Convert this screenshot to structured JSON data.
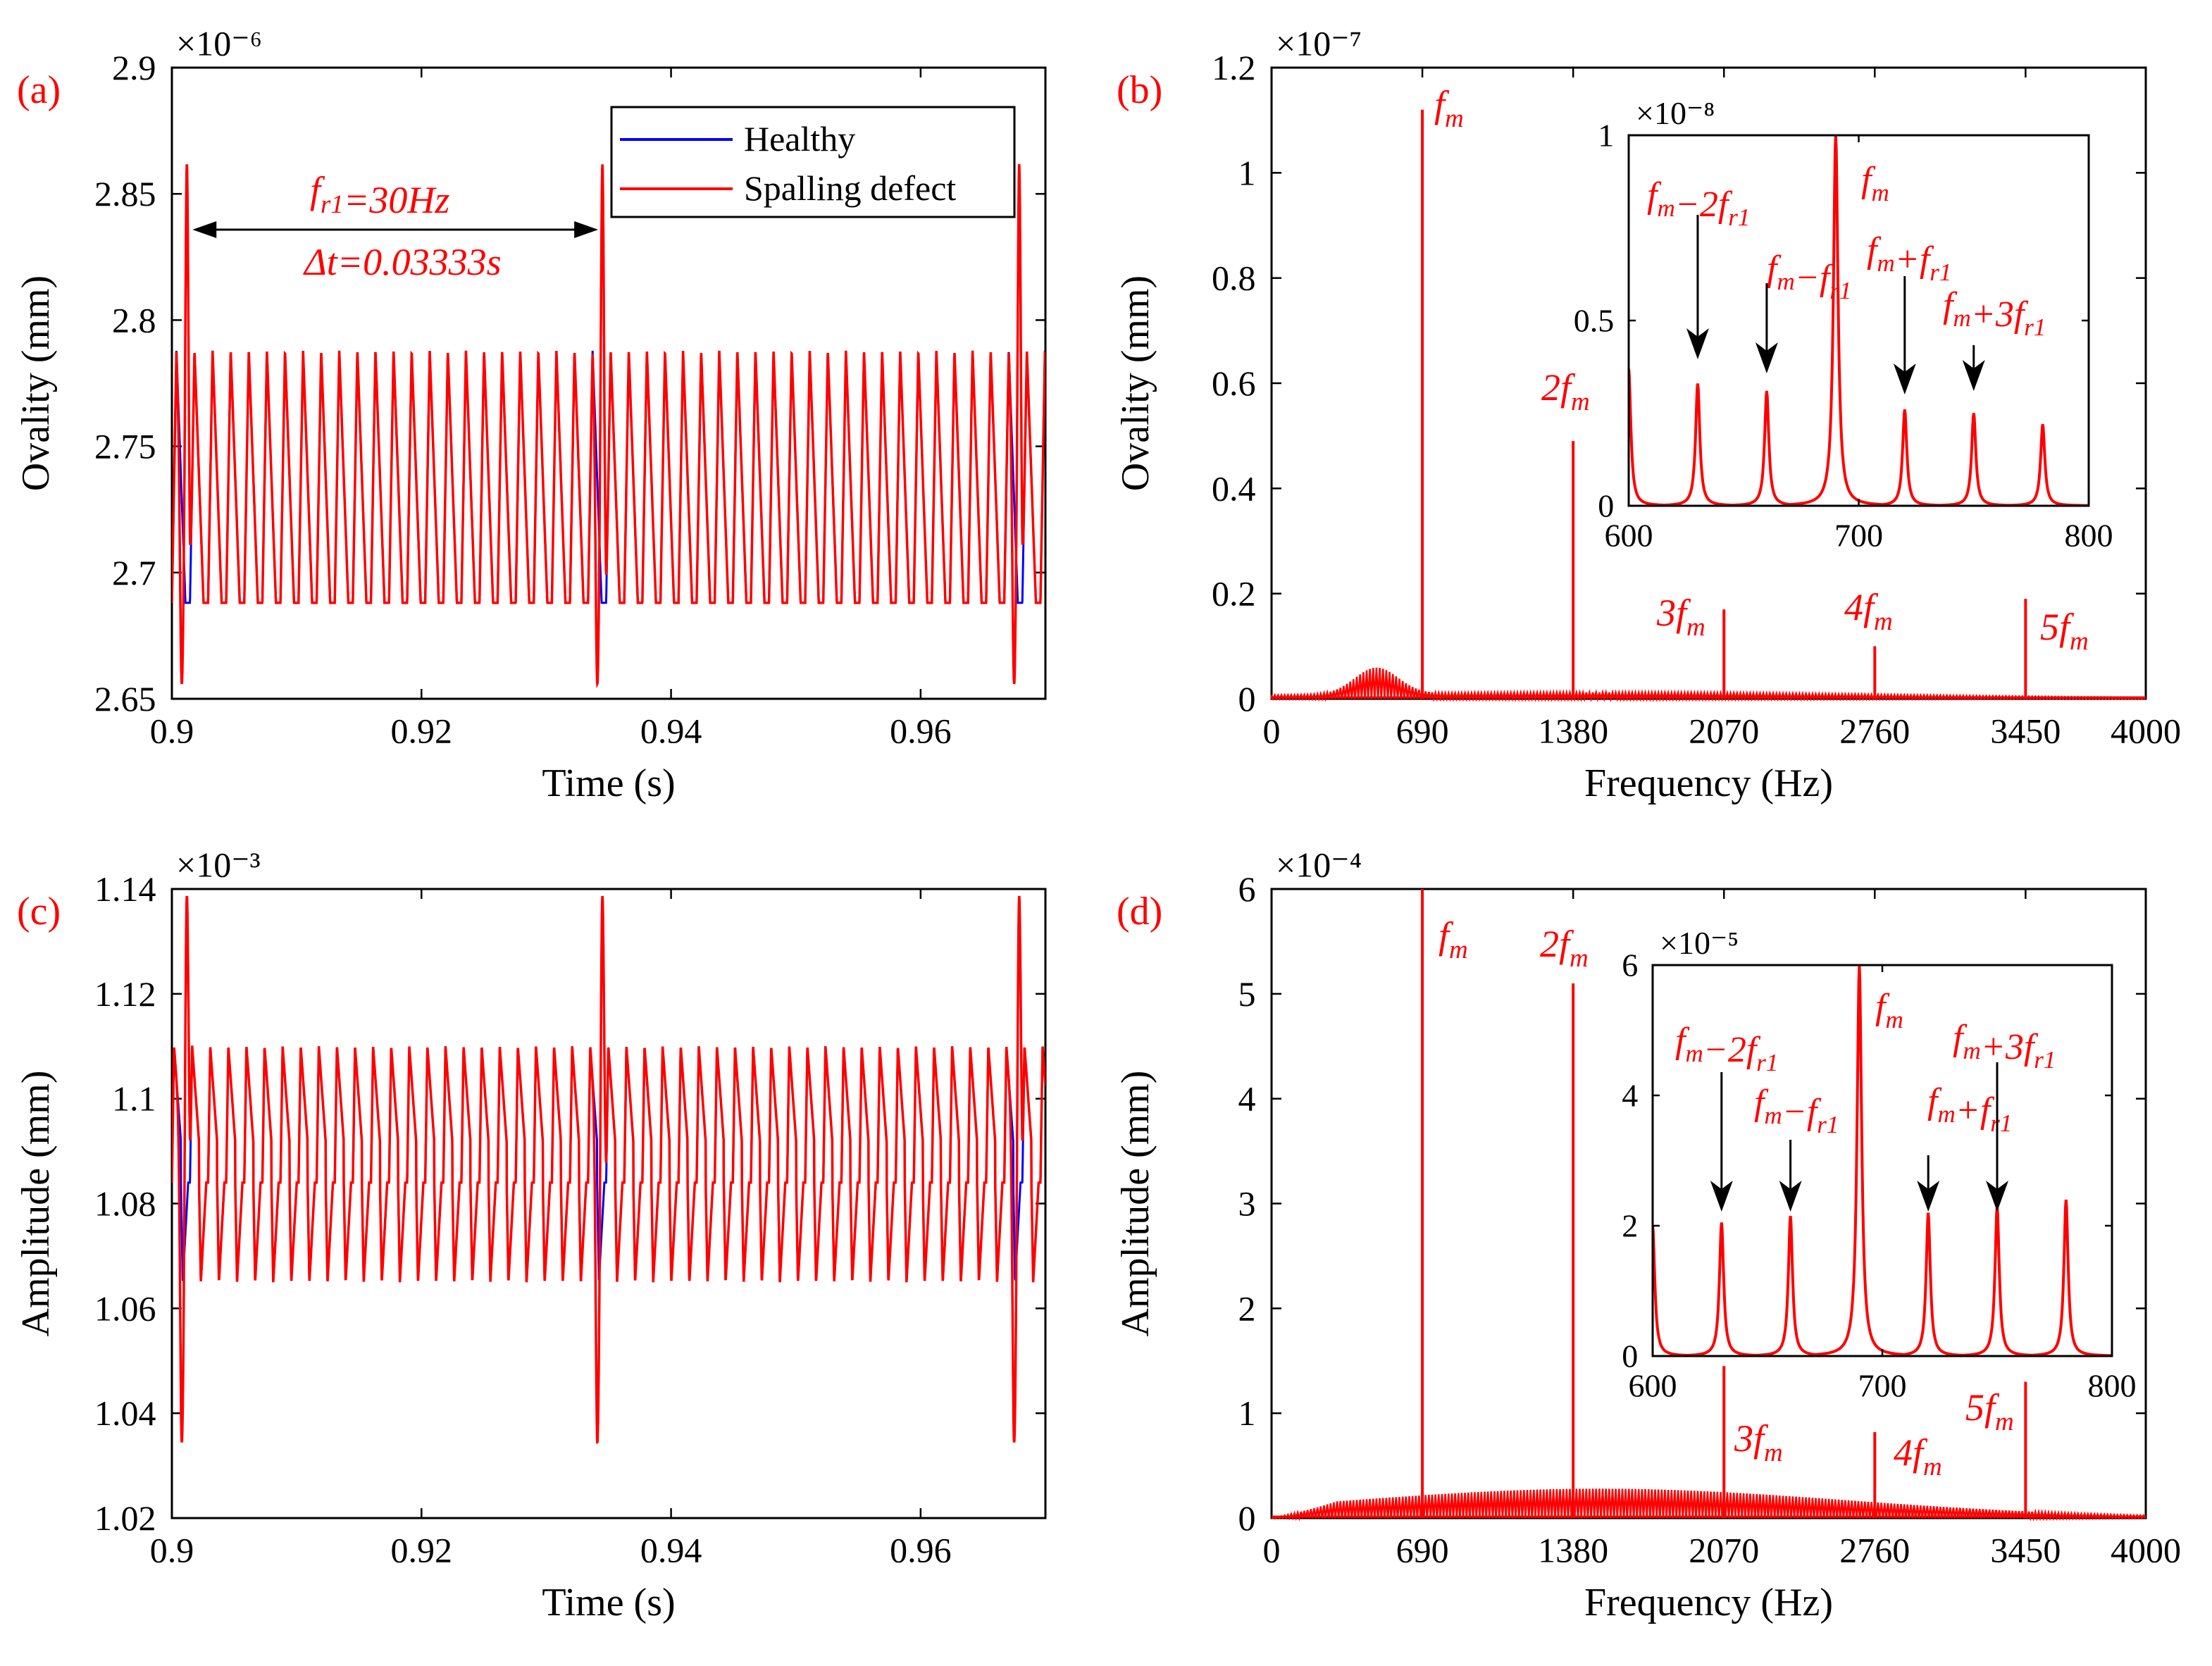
{
  "colors": {
    "healthy": "#0000ff",
    "defect": "#ff0000",
    "annotation": "#ff0000",
    "axis": "#000000",
    "arrow": "#000000"
  },
  "panels": [
    {
      "id": "a",
      "label": "(a)",
      "type": "line",
      "xlabel": "Time (s)",
      "ylabel": "Ovality (mm)",
      "exponent": "×10⁻⁶",
      "xlim": [
        0.9,
        0.97
      ],
      "ylim": [
        2.65,
        2.9
      ],
      "xticks": [
        0.9,
        0.92,
        0.94,
        0.96
      ],
      "xtick_labels": [
        "0.9",
        "0.92",
        "0.94",
        "0.96"
      ],
      "yticks": [
        2.65,
        2.7,
        2.75,
        2.8,
        2.85,
        2.9
      ],
      "ytick_labels": [
        "2.65",
        "2.7",
        "2.75",
        "2.8",
        "2.85",
        "2.9"
      ],
      "legend": {
        "position": "top-right",
        "entries": [
          "Healthy",
          "Spalling defect"
        ]
      },
      "annotations": {
        "fr1": "f_r1=30Hz",
        "dt": "Δt=0.03333s"
      },
      "signal": {
        "mesh_period_s": 0.00145,
        "healthy_high": 2.788,
        "healthy_low": 2.688,
        "defect_peak": 2.862,
        "defect_dip": 2.655,
        "defect_times": [
          0.9012,
          0.9345,
          0.9679
        ]
      }
    },
    {
      "id": "b",
      "label": "(b)",
      "type": "spectrum",
      "xlabel": "Frequency (Hz)",
      "ylabel": "Ovality (mm)",
      "exponent": "×10⁻⁷",
      "xlim": [
        0,
        4000
      ],
      "ylim": [
        0,
        1.2
      ],
      "xticks": [
        0,
        690,
        1380,
        2070,
        2760,
        3450,
        4000
      ],
      "xtick_labels": [
        "0",
        "690",
        "1380",
        "2070",
        "2760",
        "3450",
        "4000"
      ],
      "yticks": [
        0,
        0.2,
        0.4,
        0.6,
        0.8,
        1.0,
        1.2
      ],
      "ytick_labels": [
        "0",
        "0.2",
        "0.4",
        "0.6",
        "0.8",
        "1",
        "1.2"
      ],
      "harmonics": [
        {
          "f": 690,
          "amp": 1.12,
          "label": "f_m"
        },
        {
          "f": 1380,
          "amp": 0.49,
          "label": "2f_m"
        },
        {
          "f": 2070,
          "amp": 0.17,
          "label": "3f_m"
        },
        {
          "f": 2760,
          "amp": 0.1,
          "label": "4f_m"
        },
        {
          "f": 3450,
          "amp": 0.19,
          "label": "5f_m"
        }
      ],
      "inset": {
        "exponent": "×10⁻⁸",
        "xlim": [
          600,
          800
        ],
        "ylim": [
          0,
          1
        ],
        "xticks": [
          600,
          700,
          800
        ],
        "xtick_labels": [
          "600",
          "700",
          "800"
        ],
        "yticks": [
          0,
          0.5,
          1
        ],
        "ytick_labels": [
          "0",
          "0.5",
          "1"
        ],
        "peaks": [
          {
            "f": 600,
            "amp": 0.37
          },
          {
            "f": 630,
            "amp": 0.33
          },
          {
            "f": 660,
            "amp": 0.31
          },
          {
            "f": 690,
            "amp": 1.0
          },
          {
            "f": 720,
            "amp": 0.26
          },
          {
            "f": 750,
            "amp": 0.25
          },
          {
            "f": 780,
            "amp": 0.22
          }
        ],
        "labels": [
          "f_m-2f_r1",
          "f_m-f_r1",
          "f_m",
          "f_m+f_r1",
          "f_m+3f_r1"
        ]
      }
    },
    {
      "id": "c",
      "label": "(c)",
      "type": "line",
      "xlabel": "Time (s)",
      "ylabel": "Amplitude (mm)",
      "exponent": "×10⁻³",
      "xlim": [
        0.9,
        0.97
      ],
      "ylim": [
        1.02,
        1.14
      ],
      "xticks": [
        0.9,
        0.92,
        0.94,
        0.96
      ],
      "xtick_labels": [
        "0.9",
        "0.92",
        "0.94",
        "0.96"
      ],
      "yticks": [
        1.02,
        1.04,
        1.06,
        1.08,
        1.1,
        1.12,
        1.14
      ],
      "ytick_labels": [
        "1.02",
        "1.04",
        "1.06",
        "1.08",
        "1.1",
        "1.12",
        "1.14"
      ],
      "signal": {
        "mesh_period_s": 0.00145,
        "healthy_high": 1.11,
        "healthy_low": 1.065,
        "healthy_mid": 1.084,
        "defect_peak": 1.139,
        "defect_dip": 1.034,
        "defect_times": [
          0.9012,
          0.9345,
          0.9679
        ]
      }
    },
    {
      "id": "d",
      "label": "(d)",
      "type": "spectrum",
      "xlabel": "Frequency (Hz)",
      "ylabel": "Amplitude (mm)",
      "exponent": "×10⁻⁴",
      "xlim": [
        0,
        4000
      ],
      "ylim": [
        0,
        6
      ],
      "xticks": [
        0,
        690,
        1380,
        2070,
        2760,
        3450,
        4000
      ],
      "xtick_labels": [
        "0",
        "690",
        "1380",
        "2070",
        "2760",
        "3450",
        "4000"
      ],
      "yticks": [
        0,
        1,
        2,
        3,
        4,
        5,
        6
      ],
      "ytick_labels": [
        "0",
        "1",
        "2",
        "3",
        "4",
        "5",
        "6"
      ],
      "harmonics": [
        {
          "f": 690,
          "amp": 6.0,
          "label": "f_m"
        },
        {
          "f": 1380,
          "amp": 5.1,
          "label": "2f_m"
        },
        {
          "f": 2070,
          "amp": 1.45,
          "label": "3f_m"
        },
        {
          "f": 2760,
          "amp": 0.82,
          "label": "4f_m"
        },
        {
          "f": 3450,
          "amp": 1.3,
          "label": "5f_m"
        }
      ],
      "inset": {
        "exponent": "×10⁻⁵",
        "xlim": [
          600,
          800
        ],
        "ylim": [
          0,
          6
        ],
        "xticks": [
          600,
          700,
          800
        ],
        "xtick_labels": [
          "600",
          "700",
          "800"
        ],
        "yticks": [
          0,
          2,
          4,
          6
        ],
        "ytick_labels": [
          "0",
          "2",
          "4",
          "6"
        ],
        "peaks": [
          {
            "f": 600,
            "amp": 2.0
          },
          {
            "f": 630,
            "amp": 2.05
          },
          {
            "f": 660,
            "amp": 2.15
          },
          {
            "f": 690,
            "amp": 6.0
          },
          {
            "f": 720,
            "amp": 2.2
          },
          {
            "f": 750,
            "amp": 2.3
          },
          {
            "f": 780,
            "amp": 2.4
          }
        ],
        "labels": [
          "f_m-2f_r1",
          "f_m-f_r1",
          "f_m",
          "f_m+f_r1",
          "f_m+3f_r1"
        ]
      }
    }
  ],
  "chart_data": [
    {
      "type": "line",
      "title": "(a)",
      "xlabel": "Time (s)",
      "ylabel": "Ovality (mm)",
      "scale": "×10⁻⁶",
      "xlim": [
        0.9,
        0.97
      ],
      "ylim": [
        2.65,
        2.9
      ],
      "series": [
        {
          "name": "Healthy",
          "range": [
            2.688,
            2.788
          ]
        },
        {
          "name": "Spalling defect",
          "range": [
            2.655,
            2.862
          ],
          "impact_period_s": 0.03333
        }
      ]
    },
    {
      "type": "line",
      "title": "(b)",
      "xlabel": "Frequency (Hz)",
      "ylabel": "Ovality (mm)",
      "scale": "×10⁻⁷",
      "xlim": [
        0,
        4000
      ],
      "ylim": [
        0,
        1.2
      ],
      "x": [
        690,
        1380,
        2070,
        2760,
        3450
      ],
      "values": [
        1.12,
        0.49,
        0.17,
        0.1,
        0.19
      ]
    },
    {
      "type": "line",
      "title": "(c)",
      "xlabel": "Time (s)",
      "ylabel": "Amplitude (mm)",
      "scale": "×10⁻³",
      "xlim": [
        0.9,
        0.97
      ],
      "ylim": [
        1.02,
        1.14
      ],
      "series": [
        {
          "name": "Healthy",
          "range": [
            1.065,
            1.11
          ]
        },
        {
          "name": "Spalling defect",
          "range": [
            1.034,
            1.139
          ]
        }
      ]
    },
    {
      "type": "line",
      "title": "(d)",
      "xlabel": "Frequency (Hz)",
      "ylabel": "Amplitude (mm)",
      "scale": "×10⁻⁴",
      "xlim": [
        0,
        4000
      ],
      "ylim": [
        0,
        6
      ],
      "x": [
        690,
        1380,
        2070,
        2760,
        3450
      ],
      "values": [
        6.0,
        5.1,
        1.45,
        0.82,
        1.3
      ]
    }
  ]
}
